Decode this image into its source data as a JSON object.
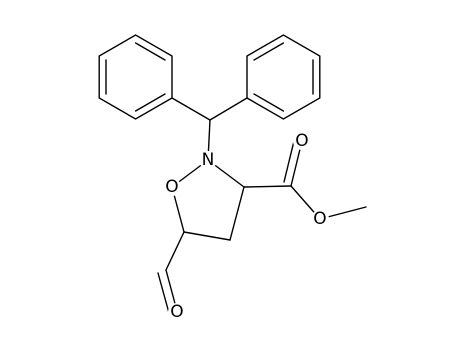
{
  "atoms": {
    "nitrogen": "N",
    "ring_oxygen": "O",
    "carbonyl_oxygen": "O",
    "ester_oxygen": "O",
    "aldehyde_oxygen": "O"
  }
}
